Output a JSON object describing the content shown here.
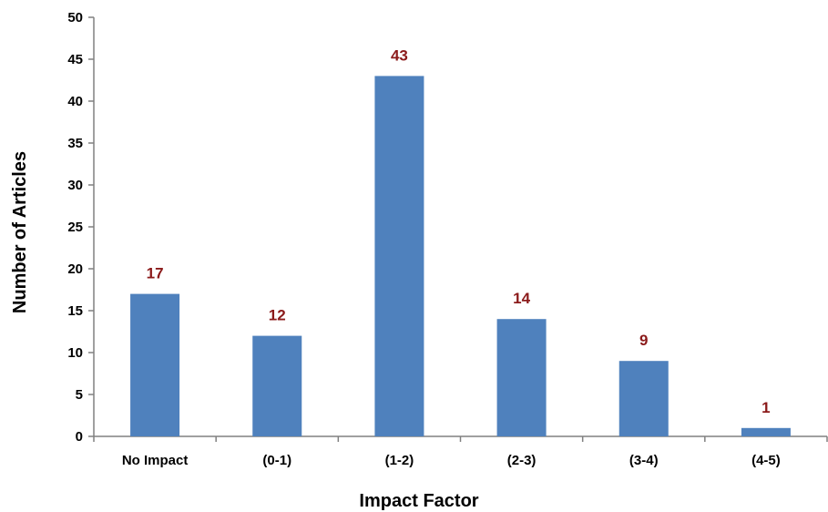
{
  "chart_data": {
    "type": "bar",
    "categories": [
      "No Impact",
      "(0-1)",
      "(1-2)",
      "(2-3)",
      "(3-4)",
      "(4-5)"
    ],
    "values": [
      17,
      12,
      43,
      14,
      9,
      1
    ],
    "data_labels": [
      "17",
      "12",
      "43",
      "14",
      "9",
      "1"
    ],
    "title": "",
    "xlabel": "Impact Factor",
    "ylabel": "Number of Articles",
    "ylim": [
      0,
      50
    ],
    "yticks": [
      0,
      5,
      10,
      15,
      20,
      25,
      30,
      35,
      40,
      45,
      50
    ],
    "grid": false,
    "legend": "none",
    "colors": {
      "bar": "#4F81BD",
      "data_label": "#8B1A1A",
      "axis": "#808080"
    }
  }
}
